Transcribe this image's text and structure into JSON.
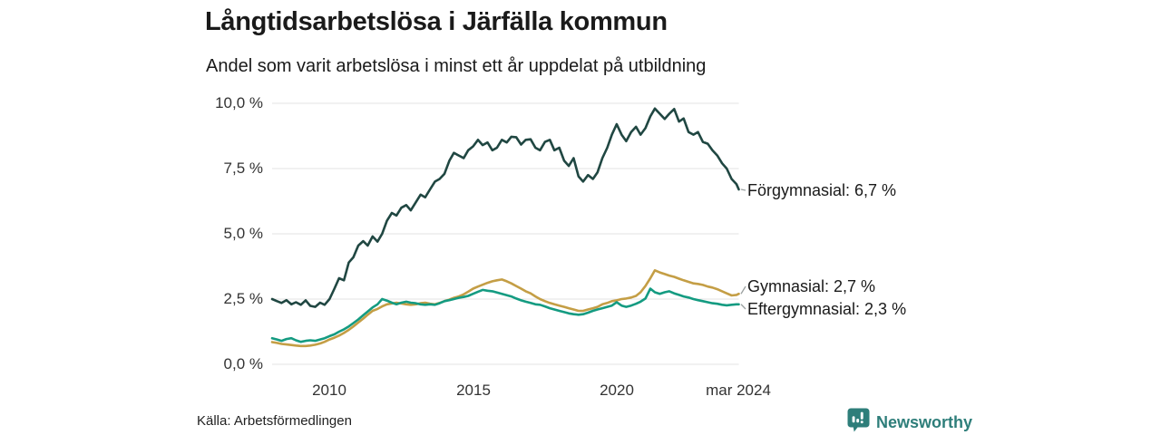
{
  "header": {
    "title": "Långtidsarbetslösa i Järfälla kommun",
    "subtitle": "Andel som varit arbetslösa i minst ett år uppdelat på utbildning"
  },
  "footer": {
    "source": "Källa: Arbetsförmedlingen",
    "brand": "Newsworthy",
    "brand_icon": "newsworthy-chart-bubble-icon",
    "brand_color": "#2e7e7a"
  },
  "chart_data": {
    "type": "line",
    "title": "Långtidsarbetslösa i Järfälla kommun",
    "subtitle": "Andel som varit arbetslösa i minst ett år uppdelat på utbildning",
    "xlabel": "",
    "ylabel": "",
    "xlim": [
      2008,
      2024.25
    ],
    "ylim": [
      0,
      10
    ],
    "grid": "horizontal",
    "legend_position": "end-of-line-labels",
    "colors": {
      "grid": "#e3e3e3",
      "connector": "#9aa0a0"
    },
    "yticks": {
      "values": [
        0,
        2.5,
        5,
        7.5,
        10
      ],
      "labels": [
        "0,0 %",
        "2,5 %",
        "5,0 %",
        "7,5 %",
        "10,0 %"
      ]
    },
    "xticks": {
      "values": [
        2010,
        2015,
        2020,
        2024.25
      ],
      "labels": [
        "2010",
        "2015",
        "2020",
        "mar 2024"
      ]
    },
    "x": [
      2008,
      2008.17,
      2008.33,
      2008.5,
      2008.67,
      2008.83,
      2009,
      2009.17,
      2009.33,
      2009.5,
      2009.67,
      2009.83,
      2010,
      2010.17,
      2010.33,
      2010.5,
      2010.67,
      2010.83,
      2011,
      2011.17,
      2011.33,
      2011.5,
      2011.67,
      2011.83,
      2012,
      2012.17,
      2012.33,
      2012.5,
      2012.67,
      2012.83,
      2013,
      2013.17,
      2013.33,
      2013.5,
      2013.67,
      2013.83,
      2014,
      2014.17,
      2014.33,
      2014.5,
      2014.67,
      2014.83,
      2015,
      2015.17,
      2015.33,
      2015.5,
      2015.67,
      2015.83,
      2016,
      2016.17,
      2016.33,
      2016.5,
      2016.67,
      2016.83,
      2017,
      2017.17,
      2017.33,
      2017.5,
      2017.67,
      2017.83,
      2018,
      2018.17,
      2018.33,
      2018.5,
      2018.67,
      2018.83,
      2019,
      2019.17,
      2019.33,
      2019.5,
      2019.67,
      2019.83,
      2020,
      2020.17,
      2020.33,
      2020.5,
      2020.67,
      2020.83,
      2021,
      2021.17,
      2021.33,
      2021.5,
      2021.67,
      2021.83,
      2022,
      2022.17,
      2022.33,
      2022.5,
      2022.67,
      2022.83,
      2023,
      2023.17,
      2023.33,
      2023.5,
      2023.67,
      2023.83,
      2024,
      2024.17,
      2024.25
    ],
    "series": [
      {
        "name": "Förgymnasial",
        "color": "#204742",
        "end_value_label": "6,7 %",
        "values": [
          2.5,
          2.42,
          2.35,
          2.46,
          2.3,
          2.38,
          2.28,
          2.45,
          2.24,
          2.2,
          2.36,
          2.28,
          2.5,
          2.9,
          3.3,
          3.22,
          3.9,
          4.1,
          4.55,
          4.72,
          4.55,
          4.9,
          4.7,
          5,
          5.5,
          5.8,
          5.7,
          6,
          6.1,
          5.9,
          6.2,
          6.5,
          6.4,
          6.7,
          7,
          7.1,
          7.3,
          7.8,
          8.1,
          8,
          7.9,
          8.2,
          8.35,
          8.6,
          8.4,
          8.5,
          8.2,
          8.3,
          8.6,
          8.5,
          8.72,
          8.7,
          8.42,
          8.6,
          8.62,
          8.3,
          8.2,
          8.52,
          8.6,
          8.2,
          8.3,
          7.8,
          7.6,
          7.9,
          7.2,
          7,
          7.25,
          7.1,
          7.35,
          7.9,
          8.3,
          8.8,
          9.2,
          8.8,
          8.55,
          8.9,
          9.1,
          8.8,
          9.05,
          9.5,
          9.8,
          9.6,
          9.4,
          9.6,
          9.78,
          9.3,
          9.42,
          8.9,
          8.8,
          8.9,
          8.52,
          8.45,
          8.2,
          8,
          7.7,
          7.5,
          7.1,
          6.9,
          6.7
        ]
      },
      {
        "name": "Gymnasial",
        "color": "#c49e45",
        "end_value_label": "2,7 %",
        "values": [
          0.85,
          0.82,
          0.78,
          0.76,
          0.74,
          0.72,
          0.7,
          0.7,
          0.72,
          0.75,
          0.8,
          0.86,
          0.95,
          1.02,
          1.1,
          1.2,
          1.32,
          1.45,
          1.6,
          1.75,
          1.9,
          2.05,
          2.12,
          2.22,
          2.3,
          2.33,
          2.36,
          2.33,
          2.3,
          2.28,
          2.3,
          2.34,
          2.36,
          2.32,
          2.3,
          2.35,
          2.42,
          2.48,
          2.55,
          2.6,
          2.68,
          2.78,
          2.9,
          2.98,
          3.05,
          3.12,
          3.18,
          3.22,
          3.25,
          3.18,
          3.1,
          3,
          2.9,
          2.8,
          2.72,
          2.6,
          2.5,
          2.42,
          2.35,
          2.3,
          2.25,
          2.2,
          2.15,
          2.1,
          2.05,
          2.05,
          2.1,
          2.15,
          2.2,
          2.3,
          2.35,
          2.42,
          2.45,
          2.5,
          2.52,
          2.56,
          2.62,
          2.76,
          3,
          3.3,
          3.6,
          3.52,
          3.46,
          3.4,
          3.35,
          3.28,
          3.22,
          3.16,
          3.1,
          3.08,
          3.04,
          2.98,
          2.94,
          2.88,
          2.8,
          2.72,
          2.64,
          2.66,
          2.7
        ]
      },
      {
        "name": "Eftergymnasial",
        "color": "#149b81",
        "end_value_label": "2,3 %",
        "values": [
          1,
          0.95,
          0.9,
          0.97,
          1,
          0.92,
          0.86,
          0.9,
          0.92,
          0.9,
          0.95,
          1,
          1.08,
          1.15,
          1.25,
          1.34,
          1.45,
          1.58,
          1.72,
          1.88,
          2.02,
          2.18,
          2.3,
          2.5,
          2.44,
          2.36,
          2.3,
          2.36,
          2.4,
          2.36,
          2.34,
          2.3,
          2.28,
          2.3,
          2.28,
          2.34,
          2.42,
          2.46,
          2.5,
          2.55,
          2.58,
          2.62,
          2.7,
          2.78,
          2.85,
          2.82,
          2.8,
          2.75,
          2.7,
          2.65,
          2.6,
          2.52,
          2.45,
          2.4,
          2.35,
          2.3,
          2.28,
          2.22,
          2.15,
          2.1,
          2.05,
          2,
          1.95,
          1.92,
          1.9,
          1.92,
          1.98,
          2.05,
          2.1,
          2.15,
          2.2,
          2.25,
          2.38,
          2.25,
          2.2,
          2.25,
          2.32,
          2.4,
          2.52,
          2.9,
          2.76,
          2.7,
          2.76,
          2.8,
          2.72,
          2.66,
          2.6,
          2.56,
          2.5,
          2.46,
          2.42,
          2.38,
          2.34,
          2.32,
          2.28,
          2.26,
          2.28,
          2.3,
          2.3
        ]
      }
    ],
    "annotations": [
      {
        "text": "Förgymnasial: 6,7 %"
      },
      {
        "text": "Gymnasial: 2,7 %"
      },
      {
        "text": "Eftergymnasial: 2,3 %"
      }
    ]
  }
}
